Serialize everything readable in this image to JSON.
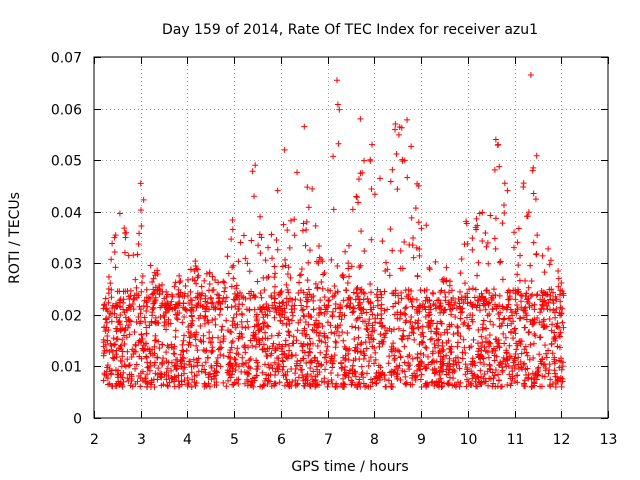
{
  "chart_data": {
    "type": "scatter",
    "title": "Day 159 of 2014, Rate Of TEC Index for receiver azu1",
    "xlabel": "GPS time / hours",
    "ylabel": "ROTI / TECUs",
    "xlim": [
      2,
      13
    ],
    "ylim": [
      0,
      0.07
    ],
    "xticks": [
      "2",
      "3",
      "4",
      "5",
      "6",
      "7",
      "8",
      "9",
      "10",
      "11",
      "12",
      "13"
    ],
    "yticks": [
      "0",
      "0.01",
      "0.02",
      "0.03",
      "0.04",
      "0.05",
      "0.06",
      "0.07"
    ],
    "grid": true,
    "marker": "+",
    "marker_color": "#ff0000",
    "series": [
      {
        "name": "ROTI (azu1)",
        "x_range": [
          2.2,
          12.05
        ],
        "bulk_range": [
          0.006,
          0.025
        ],
        "envelope": [
          [
            2.2,
            0.022
          ],
          [
            2.45,
            0.038
          ],
          [
            2.6,
            0.042
          ],
          [
            2.8,
            0.03
          ],
          [
            3.0,
            0.046
          ],
          [
            3.2,
            0.035
          ],
          [
            3.45,
            0.026
          ],
          [
            3.75,
            0.028
          ],
          [
            3.9,
            0.033
          ],
          [
            4.3,
            0.03
          ],
          [
            4.6,
            0.027
          ],
          [
            4.95,
            0.041
          ],
          [
            5.2,
            0.045
          ],
          [
            5.4,
            0.049
          ],
          [
            5.7,
            0.032
          ],
          [
            6.05,
            0.052
          ],
          [
            6.3,
            0.045
          ],
          [
            6.5,
            0.057
          ],
          [
            6.8,
            0.036
          ],
          [
            7.0,
            0.035
          ],
          [
            7.2,
            0.066
          ],
          [
            7.45,
            0.035
          ],
          [
            7.7,
            0.058
          ],
          [
            7.95,
            0.053
          ],
          [
            8.3,
            0.047
          ],
          [
            8.45,
            0.057
          ],
          [
            8.7,
            0.058
          ],
          [
            9.05,
            0.04
          ],
          [
            9.4,
            0.028
          ],
          [
            9.8,
            0.032
          ],
          [
            10.0,
            0.043
          ],
          [
            10.4,
            0.04
          ],
          [
            10.6,
            0.054
          ],
          [
            10.8,
            0.052
          ],
          [
            11.1,
            0.039
          ],
          [
            11.35,
            0.067
          ],
          [
            11.6,
            0.035
          ],
          [
            11.9,
            0.03
          ],
          [
            12.05,
            0.025
          ]
        ],
        "outliers": [
          [
            7.2,
            0.0655
          ],
          [
            7.22,
            0.0608
          ],
          [
            7.25,
            0.0598
          ],
          [
            11.35,
            0.0665
          ],
          [
            6.5,
            0.0565
          ],
          [
            7.7,
            0.058
          ],
          [
            8.7,
            0.0578
          ],
          [
            8.45,
            0.057
          ],
          [
            10.6,
            0.054
          ],
          [
            10.65,
            0.053
          ],
          [
            6.08,
            0.052
          ],
          [
            7.95,
            0.053
          ],
          [
            5.45,
            0.049
          ],
          [
            11.4,
            0.0485
          ],
          [
            3.0,
            0.0455
          ]
        ]
      }
    ]
  }
}
